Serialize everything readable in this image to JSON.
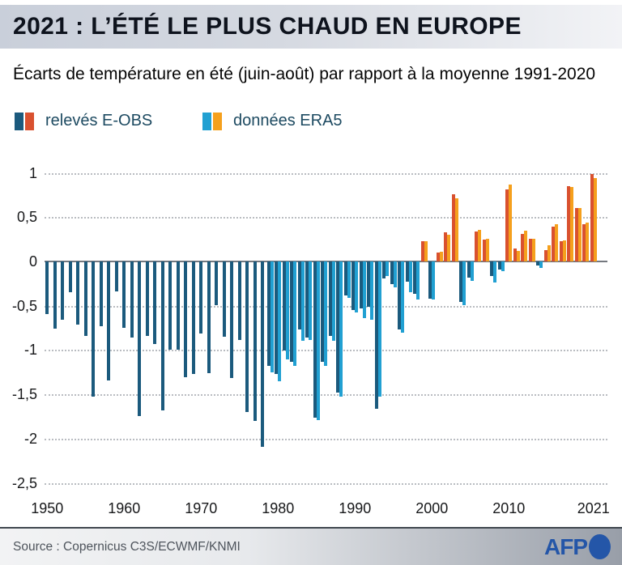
{
  "header": {
    "title": "2021 : L’ÉTÉ LE PLUS CHAUD EN EUROPE"
  },
  "subtitle": "Écarts de température en été (juin-août) par rapport à la moyenne 1991-2020",
  "legend": [
    {
      "label": "relevés E-OBS",
      "colors": [
        "#1b5a7d",
        "#d9512f"
      ]
    },
    {
      "label": "données ERA5",
      "colors": [
        "#21a0d2",
        "#f5a01d"
      ]
    }
  ],
  "colors": {
    "eobs_negative": "#1b5a7d",
    "eobs_positive": "#d9512f",
    "era5_negative": "#21a0d2",
    "era5_positive": "#f5a01d",
    "zero_line": "#75797f",
    "grid_dots": "#b9bcc1",
    "afp_blue": "#2456a8"
  },
  "footer": {
    "source": "Source : Copernicus C3S/ECWMF/KNMI",
    "logo": "AFP"
  },
  "chart_data": {
    "type": "bar",
    "title": "Écarts de température en été (juin-août) par rapport à la moyenne 1991-2020",
    "xlabel": "",
    "ylabel": "",
    "ylim": [
      -2.5,
      1
    ],
    "grid": true,
    "legend_position": "top",
    "yticks": [
      {
        "value": 1,
        "label": "1"
      },
      {
        "value": 0.5,
        "label": "0,5"
      },
      {
        "value": 0,
        "label": "0"
      },
      {
        "value": -0.5,
        "label": "-0,5"
      },
      {
        "value": -1,
        "label": "-1"
      },
      {
        "value": -1.5,
        "label": "-1,5"
      },
      {
        "value": -2,
        "label": "-2"
      },
      {
        "value": -2.5,
        "label": "-2,5"
      }
    ],
    "xticks": [
      {
        "year": 1950,
        "label": "1950"
      },
      {
        "year": 1960,
        "label": "1960"
      },
      {
        "year": 1970,
        "label": "1970"
      },
      {
        "year": 1980,
        "label": "1980"
      },
      {
        "year": 1990,
        "label": "1990"
      },
      {
        "year": 2000,
        "label": "2000"
      },
      {
        "year": 2010,
        "label": "2010"
      },
      {
        "year": 2021,
        "label": "2021"
      }
    ],
    "categories": [
      1950,
      1951,
      1952,
      1953,
      1954,
      1955,
      1956,
      1957,
      1958,
      1959,
      1960,
      1961,
      1962,
      1963,
      1964,
      1965,
      1966,
      1967,
      1968,
      1969,
      1970,
      1971,
      1972,
      1973,
      1974,
      1975,
      1976,
      1977,
      1978,
      1979,
      1980,
      1981,
      1982,
      1983,
      1984,
      1985,
      1986,
      1987,
      1988,
      1989,
      1990,
      1991,
      1992,
      1993,
      1994,
      1995,
      1996,
      1997,
      1998,
      1999,
      2000,
      2001,
      2002,
      2003,
      2004,
      2005,
      2006,
      2007,
      2008,
      2009,
      2010,
      2011,
      2012,
      2013,
      2014,
      2015,
      2016,
      2017,
      2018,
      2019,
      2020,
      2021
    ],
    "series": [
      {
        "name": "relevés E-OBS",
        "values": [
          -0.59,
          -0.76,
          -0.66,
          -0.35,
          -0.71,
          -0.84,
          -1.53,
          -0.73,
          -1.34,
          -0.34,
          -0.75,
          -0.86,
          -1.75,
          -0.84,
          -0.93,
          -1.68,
          -1.0,
          -1.0,
          -1.31,
          -1.27,
          -0.81,
          -1.26,
          -0.49,
          -0.85,
          -1.32,
          -0.89,
          -1.7,
          -1.8,
          -2.09,
          -1.18,
          -1.27,
          -1.01,
          -1.13,
          -0.77,
          -0.86,
          -1.76,
          -1.13,
          -0.84,
          -1.48,
          -0.38,
          -0.55,
          -0.53,
          -0.51,
          -1.66,
          -0.19,
          -0.26,
          -0.77,
          -0.23,
          -0.37,
          0.23,
          -0.42,
          0.1,
          0.33,
          0.76,
          -0.46,
          -0.18,
          0.34,
          0.25,
          -0.16,
          -0.09,
          0.81,
          0.15,
          0.31,
          0.26,
          -0.05,
          0.13,
          0.39,
          0.23,
          0.85,
          0.6,
          0.42,
          0.99
        ]
      },
      {
        "name": "données ERA5",
        "values": [
          null,
          null,
          null,
          null,
          null,
          null,
          null,
          null,
          null,
          null,
          null,
          null,
          null,
          null,
          null,
          null,
          null,
          null,
          null,
          null,
          null,
          null,
          null,
          null,
          null,
          null,
          null,
          null,
          null,
          -1.25,
          -1.35,
          -1.11,
          -1.18,
          -0.9,
          -0.89,
          -1.79,
          -1.18,
          -0.9,
          -1.53,
          -0.41,
          -0.58,
          -0.64,
          -0.66,
          -1.53,
          -0.16,
          -0.29,
          -0.8,
          -0.35,
          -0.43,
          0.23,
          -0.43,
          0.11,
          0.3,
          0.71,
          -0.49,
          -0.22,
          0.36,
          0.26,
          -0.24,
          -0.11,
          0.87,
          0.12,
          0.35,
          0.26,
          -0.07,
          0.18,
          0.42,
          0.24,
          0.84,
          0.6,
          0.44,
          0.94
        ]
      }
    ]
  }
}
